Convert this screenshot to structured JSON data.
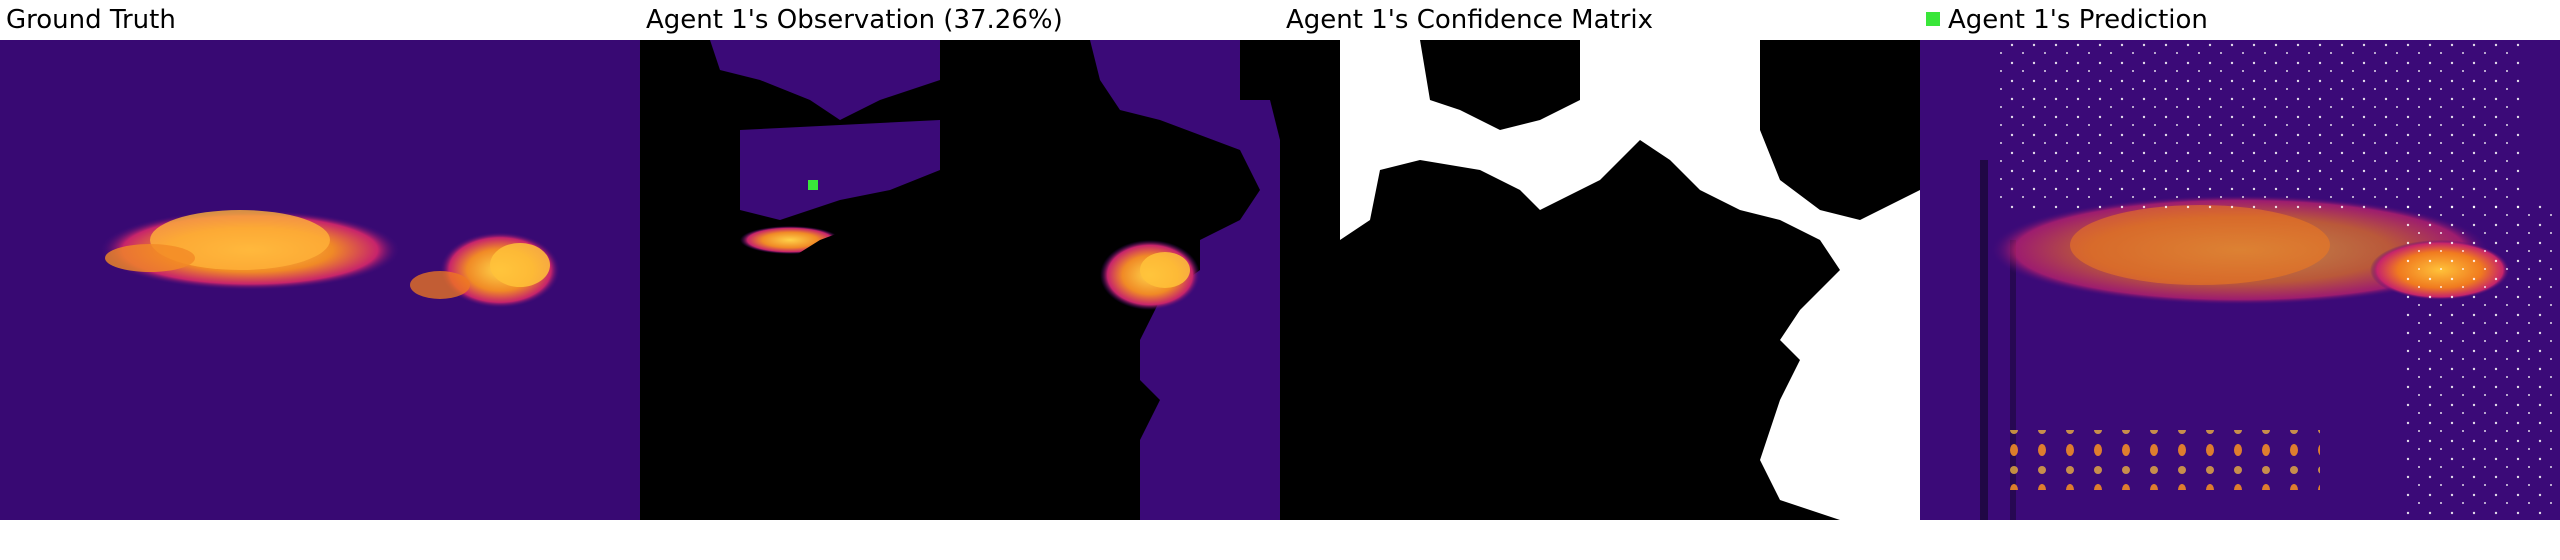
{
  "panels": {
    "ground_truth": {
      "title": "Ground Truth"
    },
    "observation": {
      "title": "Agent 1's Observation (37.26%)"
    },
    "confidence": {
      "title": "Agent 1's Confidence Matrix"
    },
    "prediction": {
      "title": "Agent 1's Prediction"
    }
  },
  "colors": {
    "background": "#3b0a78",
    "hot_yellow": "#ffc23a",
    "hot_orange": "#f07a1f",
    "hot_magenta": "#c7246b",
    "mask": "#000000",
    "confidence_high": "#ffffff",
    "agent_marker": "#39e639"
  }
}
